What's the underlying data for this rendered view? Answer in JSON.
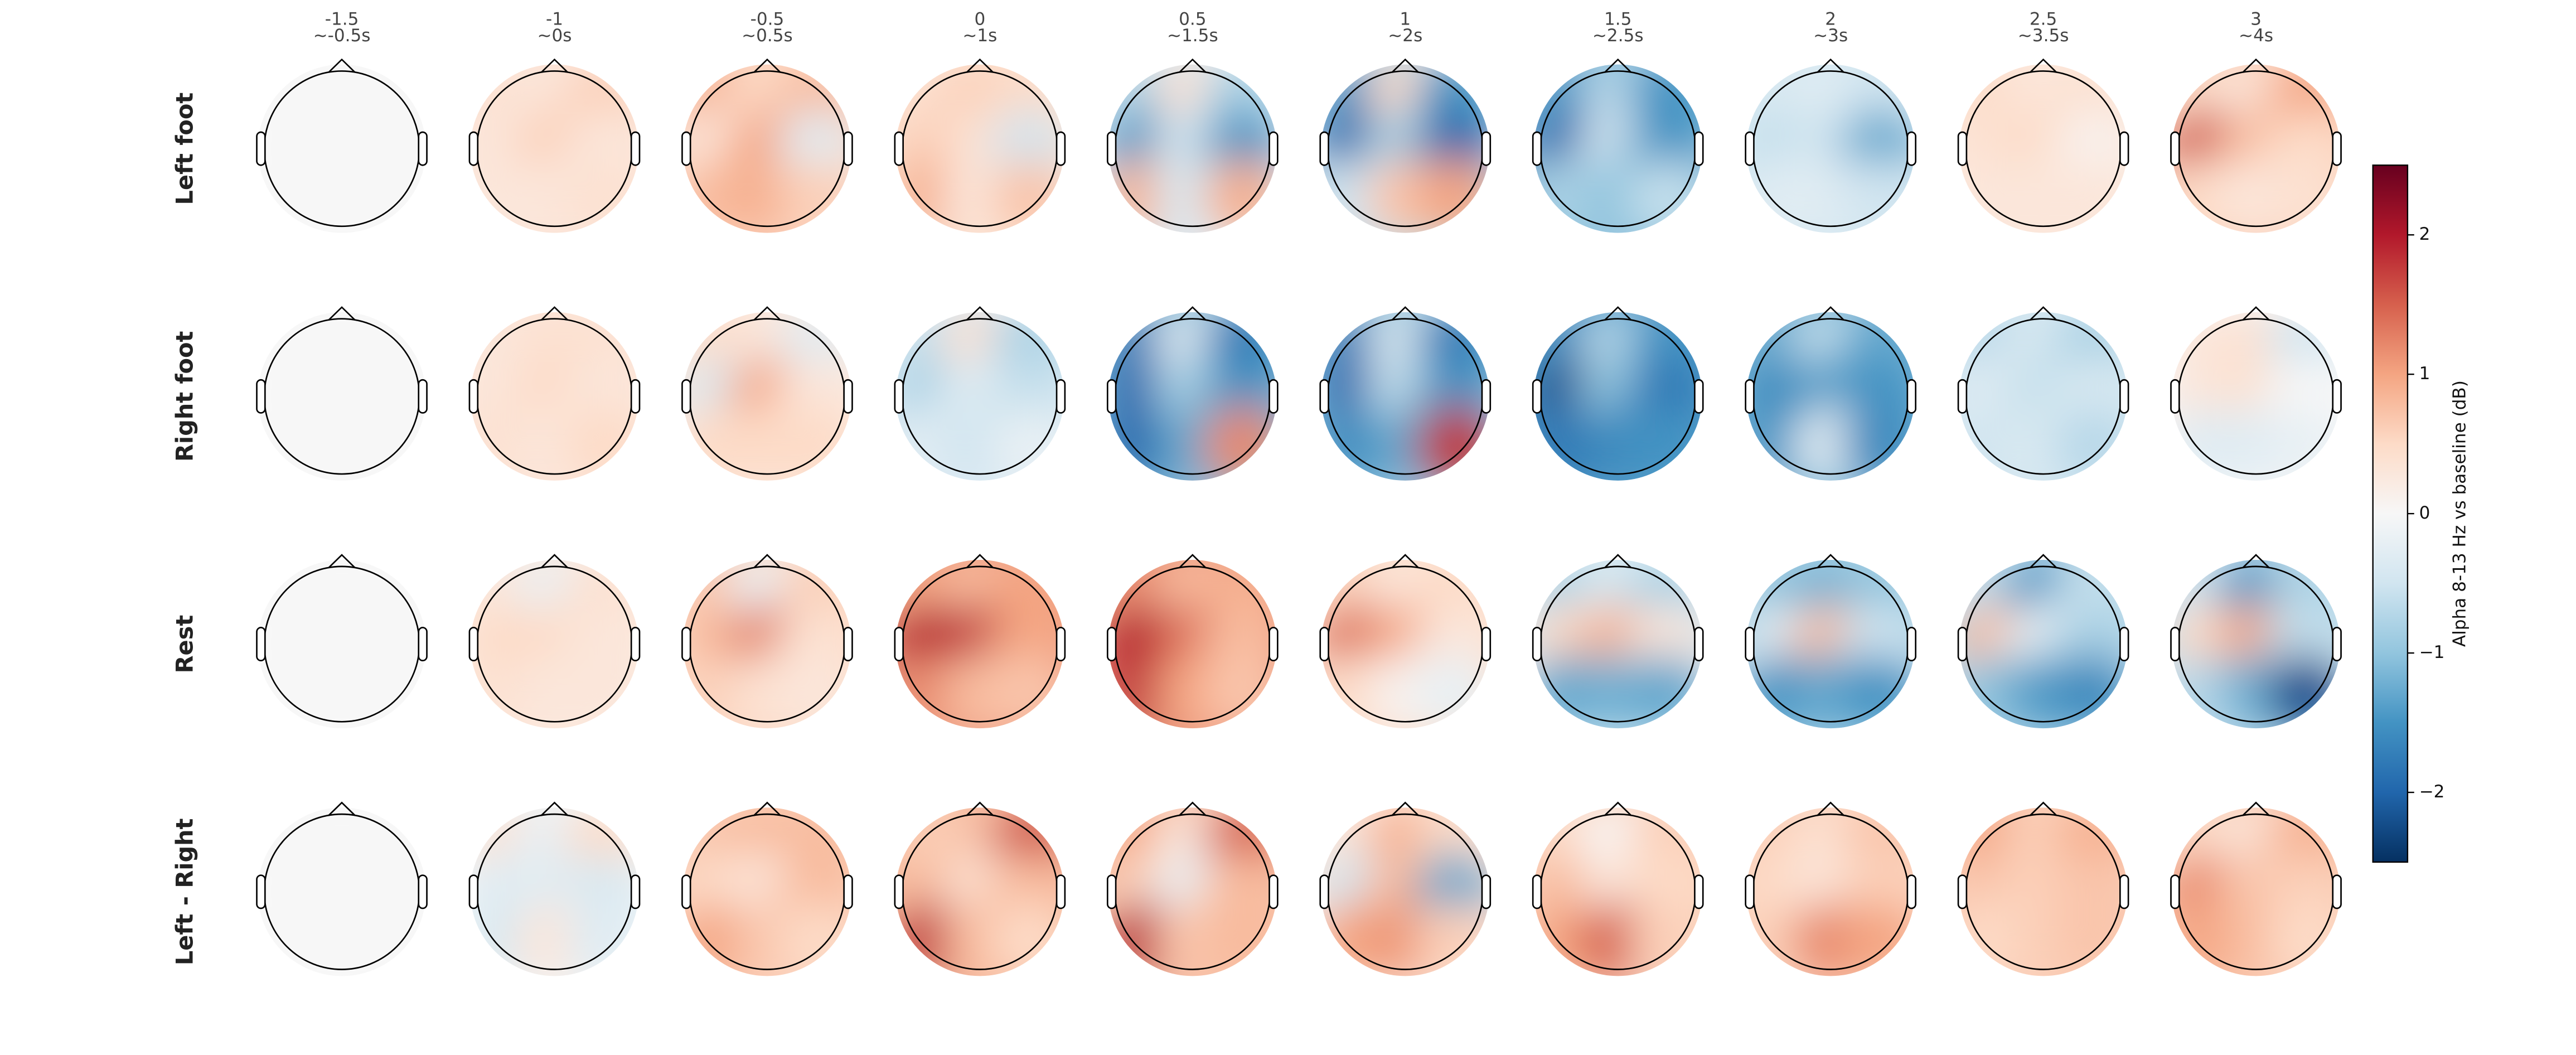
{
  "chart_data": {
    "type": "topomap",
    "colormap": "RdBu_r",
    "columns": [
      {
        "time": "-1.5",
        "window": "~-0.5s"
      },
      {
        "time": "-1",
        "window": "~0s"
      },
      {
        "time": "-0.5",
        "window": "~0.5s"
      },
      {
        "time": "0",
        "window": "~1s"
      },
      {
        "time": "0.5",
        "window": "~1.5s"
      },
      {
        "time": "1",
        "window": "~2s"
      },
      {
        "time": "1.5",
        "window": "~2.5s"
      },
      {
        "time": "2",
        "window": "~3s"
      },
      {
        "time": "2.5",
        "window": "~3.5s"
      },
      {
        "time": "3",
        "window": "~4s"
      }
    ],
    "series": [
      {
        "name": "Left foot",
        "values": [
          [
            0,
            0,
            0,
            0,
            0,
            0,
            0,
            0,
            0
          ],
          [
            0.4,
            0.3,
            0.6,
            0.3,
            0.6,
            0.3,
            0.3,
            0.3,
            0.4
          ],
          [
            0.9,
            0.5,
            0.8,
            0.3,
            1.0,
            -0.3,
            0.8,
            0.9,
            0.6
          ],
          [
            0.4,
            0.6,
            0.5,
            0.6,
            0.4,
            -0.5,
            0.9,
            0.3,
            0.7
          ],
          [
            -0.8,
            0.4,
            -0.8,
            -1.5,
            -0.5,
            -1.5,
            0.9,
            -0.4,
            0.9
          ],
          [
            -1.5,
            0.5,
            -1.5,
            -2.0,
            -0.8,
            -2.0,
            -0.5,
            0.7,
            1.0
          ],
          [
            -1.5,
            -0.7,
            -1.5,
            -2.0,
            -0.5,
            -1.5,
            -0.8,
            -1.0,
            -0.6
          ],
          [
            -0.4,
            -0.3,
            -0.5,
            -0.6,
            -0.5,
            -1.3,
            -0.3,
            -0.3,
            -0.5
          ],
          [
            0.5,
            0.3,
            0.4,
            0.4,
            0.5,
            0.1,
            0.3,
            0.3,
            0.3
          ],
          [
            0.5,
            0.3,
            1.0,
            1.6,
            0.8,
            0.5,
            0.5,
            0.3,
            0.4
          ]
        ]
      },
      {
        "name": "Right foot",
        "values": [
          [
            0,
            0,
            0,
            0,
            0,
            0,
            0,
            0,
            0
          ],
          [
            0.3,
            0.4,
            0.4,
            0.3,
            0.5,
            0.3,
            0.4,
            0.3,
            0.5
          ],
          [
            0.5,
            0.3,
            -0.3,
            -0.4,
            1.0,
            0.3,
            0.5,
            0.5,
            0.5
          ],
          [
            -0.6,
            0.4,
            -0.8,
            -0.8,
            -0.3,
            -0.6,
            -0.3,
            -0.5,
            -0.2
          ],
          [
            -1.8,
            -0.3,
            -1.8,
            -2.0,
            -0.8,
            -1.5,
            -2.0,
            -1.3,
            1.2
          ],
          [
            -1.8,
            -0.4,
            -1.8,
            -2.0,
            -0.6,
            -1.5,
            -1.6,
            -1.3,
            1.8
          ],
          [
            -1.6,
            -0.7,
            -1.5,
            -2.2,
            -1.0,
            -1.8,
            -1.8,
            -1.6,
            -1.5
          ],
          [
            -1.3,
            -0.6,
            -1.3,
            -1.6,
            -1.4,
            -1.5,
            -1.5,
            -0.3,
            -1.6
          ],
          [
            -0.7,
            -0.4,
            -0.8,
            -0.3,
            -0.6,
            -0.4,
            -0.5,
            -0.4,
            -0.7
          ],
          [
            0.3,
            0.4,
            -0.5,
            0.3,
            0.4,
            0.0,
            -0.3,
            -0.3,
            -0.2
          ]
        ]
      },
      {
        "name": "Rest",
        "values": [
          [
            0,
            0,
            0,
            0,
            0,
            0,
            0,
            0,
            0
          ],
          [
            0.3,
            -0.2,
            0.4,
            0.5,
            0.5,
            0.3,
            0.4,
            0.3,
            0.3
          ],
          [
            0.7,
            -0.2,
            0.6,
            0.8,
            1.3,
            0.4,
            0.6,
            0.4,
            0.3
          ],
          [
            1.0,
            0.8,
            1.0,
            2.0,
            1.8,
            1.0,
            1.2,
            0.8,
            0.7
          ],
          [
            1.2,
            0.8,
            0.9,
            2.0,
            1.4,
            0.8,
            1.8,
            1.0,
            0.7
          ],
          [
            0.6,
            0.3,
            0.5,
            1.4,
            1.0,
            0.3,
            0.5,
            0.1,
            -0.2
          ],
          [
            -0.8,
            -0.4,
            -0.8,
            0.5,
            0.9,
            0.3,
            -1.3,
            -1.2,
            -1.3
          ],
          [
            -1.0,
            -1.2,
            -1.0,
            -0.3,
            0.8,
            -0.5,
            -1.5,
            -1.3,
            -1.5
          ],
          [
            -0.6,
            -1.5,
            -0.6,
            0.8,
            -0.2,
            -0.8,
            -1.0,
            -1.4,
            -1.6
          ],
          [
            -0.5,
            -1.5,
            -0.8,
            0.5,
            1.0,
            -0.6,
            -0.7,
            -1.2,
            -2.2
          ]
        ]
      },
      {
        "name": "Left - Right",
        "values": [
          [
            0,
            0,
            0,
            0,
            0,
            0,
            0,
            0,
            0
          ],
          [
            0.4,
            -0.2,
            0.5,
            -0.3,
            -0.3,
            -0.4,
            -0.4,
            0.3,
            -0.3
          ],
          [
            0.7,
            0.8,
            0.8,
            0.5,
            0.3,
            0.8,
            1.0,
            0.7,
            0.5
          ],
          [
            0.6,
            0.7,
            1.6,
            0.8,
            0.4,
            0.8,
            1.8,
            0.8,
            0.5
          ],
          [
            1.0,
            0.3,
            1.5,
            0.6,
            -0.2,
            0.8,
            1.9,
            0.7,
            0.8
          ],
          [
            0.3,
            0.9,
            0.5,
            -0.5,
            0.8,
            -1.3,
            1.0,
            1.1,
            0.6
          ],
          [
            0.5,
            0.0,
            0.6,
            0.8,
            0.3,
            0.5,
            1.0,
            1.5,
            0.6
          ],
          [
            0.6,
            0.4,
            0.7,
            0.5,
            0.3,
            0.6,
            0.6,
            1.2,
            1.0
          ],
          [
            1.0,
            0.6,
            0.9,
            0.7,
            0.6,
            0.7,
            0.5,
            0.6,
            0.7
          ],
          [
            0.5,
            0.3,
            0.9,
            1.2,
            0.7,
            0.6,
            1.0,
            0.8,
            0.5
          ]
        ]
      }
    ],
    "colorbar_label": "Alpha 8-13 Hz vs baseline (dB)",
    "clim": [
      -2.5,
      2.5
    ],
    "cticks": [
      {
        "value": -2,
        "label": "−2"
      },
      {
        "value": -1,
        "label": "−1"
      },
      0,
      1,
      2
    ]
  }
}
